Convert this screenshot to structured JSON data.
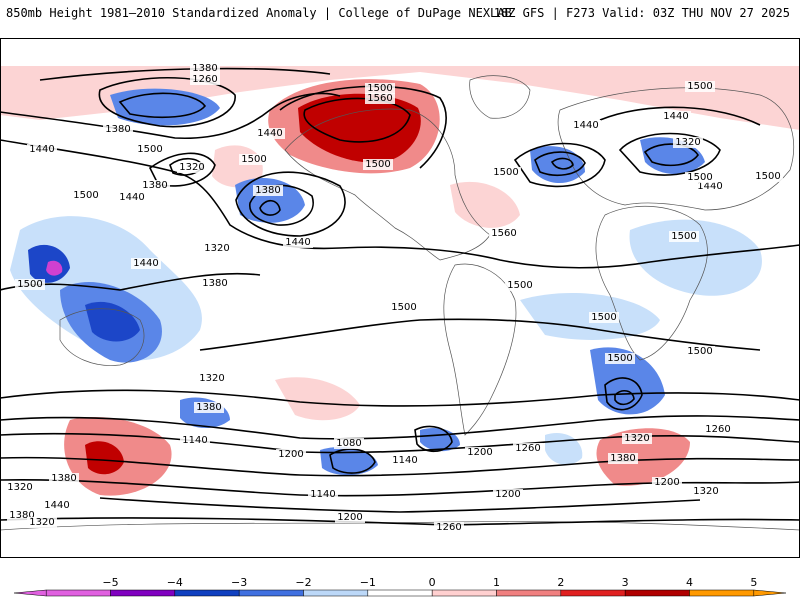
{
  "header": {
    "left_title": "850mb Height 1981–2010 Standardized Anomaly | College of DuPage NEXLAB",
    "right_title": "18Z GFS | F273 Valid: 03Z THU NOV 27 2025"
  },
  "contour_labels": [
    "1380",
    "1260",
    "1500",
    "1560",
    "1440",
    "1380",
    "1440",
    "1500",
    "1320",
    "1500",
    "1380",
    "1440",
    "1500",
    "1320",
    "1380",
    "1440",
    "1500",
    "1380",
    "1440",
    "1500",
    "1500",
    "1560",
    "1500",
    "1500",
    "1500",
    "1500",
    "1500",
    "1500",
    "1500",
    "1500",
    "1440",
    "1320",
    "1440",
    "1440",
    "1500",
    "1320",
    "1380",
    "1140",
    "1200",
    "1140",
    "1080",
    "1260",
    "1200",
    "1260",
    "1320",
    "1380",
    "1200",
    "1320",
    "1380",
    "1320",
    "1440",
    "1380",
    "1140",
    "1200",
    "1200",
    "1320",
    "1260"
  ],
  "colorbar": {
    "ticks": [
      "−5",
      "−4",
      "−3",
      "−2",
      "−1",
      "0",
      "1",
      "2",
      "3",
      "4",
      "5"
    ],
    "colors": [
      "#e060e0",
      "#8000c0",
      "#1040c0",
      "#4070e0",
      "#bcd8f8",
      "#ffffff",
      "#ffd0d0",
      "#f08080",
      "#e02020",
      "#b00000",
      "#ff9900"
    ]
  },
  "palette": {
    "neg1": "#c8e0fa",
    "neg2": "#5a86e8",
    "neg3": "#1c46c8",
    "neg5": "#d040d0",
    "pos1": "#fcd4d4",
    "pos2": "#f08a8a",
    "pos3": "#e02a2a",
    "pos4": "#c00000"
  }
}
